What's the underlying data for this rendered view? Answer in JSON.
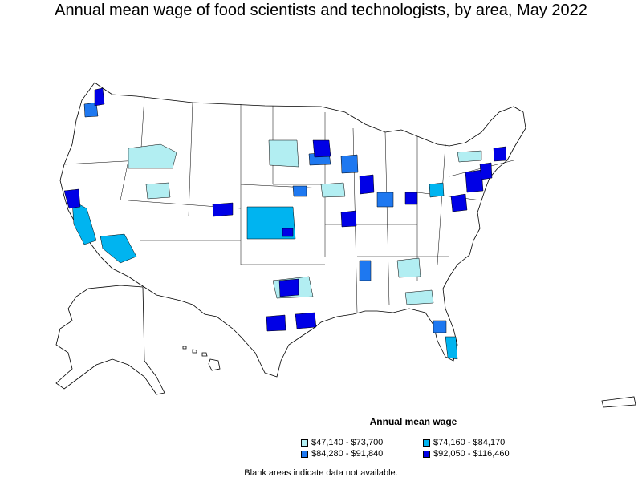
{
  "title": "Annual mean wage of food scientists and technologists, by area, May 2022",
  "legend": {
    "title": "Annual mean wage",
    "items": [
      {
        "label": "$47,140 - $73,700",
        "color": "#b2eef2"
      },
      {
        "label": "$74,160 - $84,170",
        "color": "#00b4f0"
      },
      {
        "label": "$84,280 - $91,840",
        "color": "#1e78f0"
      },
      {
        "label": "$92,050 - $116,460",
        "color": "#0000e6"
      }
    ]
  },
  "note": "Blank areas indicate data not available.",
  "colors": {
    "tier1": "#b2eef2",
    "tier2": "#00b4f0",
    "tier3": "#1e78f0",
    "tier4": "#0000e6",
    "blank": "#ffffff",
    "border": "#000000"
  }
}
